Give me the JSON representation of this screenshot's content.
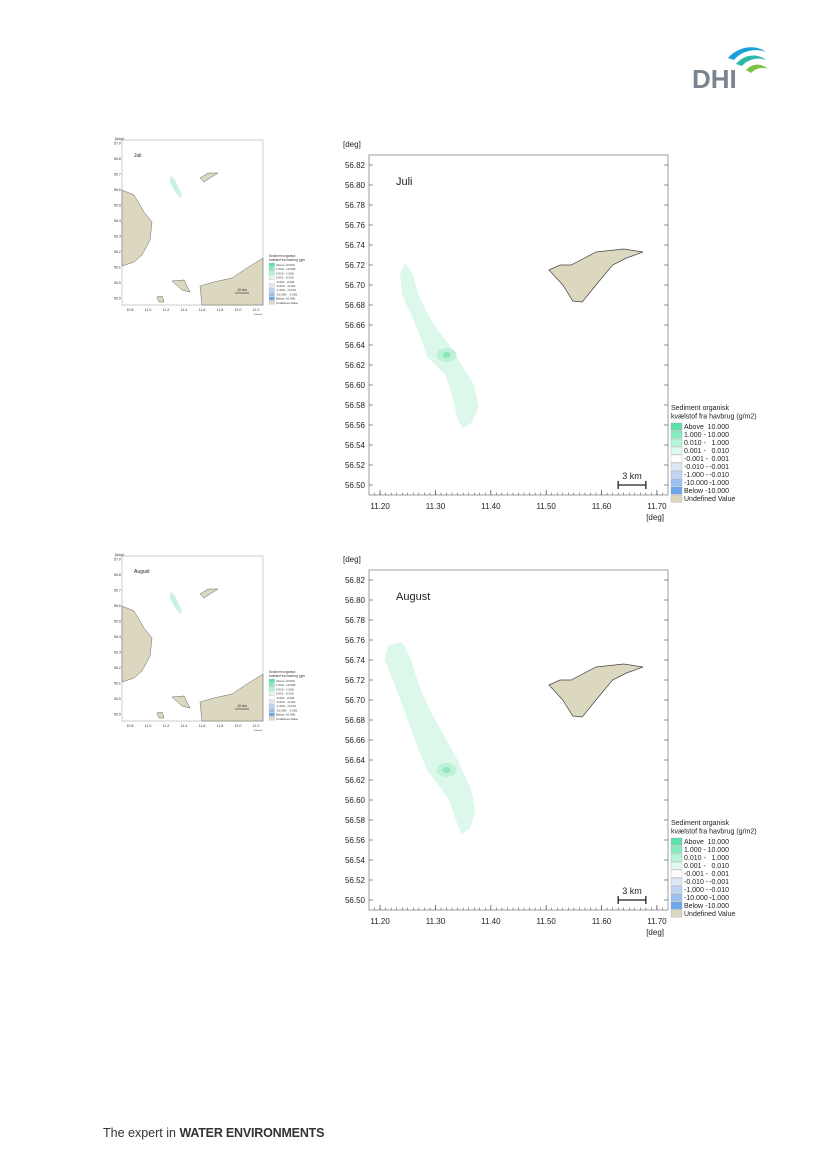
{
  "logo": {
    "text": "DHI"
  },
  "footer": {
    "prefix": "The expert in ",
    "emphasis": "WATER ENVIRONMENTS"
  },
  "panels": [
    {
      "month": "Juli",
      "thumb_month": "Juli",
      "chart_data": {
        "type": "map",
        "title": "Juli",
        "xunit": "[deg]",
        "yunit": "[deg]",
        "xticks": [
          "11.20",
          "11.30",
          "11.40",
          "11.50",
          "11.60",
          "11.70"
        ],
        "yticks": [
          "56.82",
          "56.80",
          "56.78",
          "56.76",
          "56.74",
          "56.72",
          "56.70",
          "56.68",
          "56.66",
          "56.64",
          "56.62",
          "56.60",
          "56.58",
          "56.56",
          "56.54",
          "56.52",
          "56.50"
        ],
        "xlim": [
          11.18,
          11.72
        ],
        "ylim": [
          56.49,
          56.83
        ],
        "scale_bar": "3 km",
        "plume_center": [
          11.32,
          56.63
        ]
      }
    },
    {
      "month": "August",
      "thumb_month": "August",
      "chart_data": {
        "type": "map",
        "title": "August",
        "xunit": "[deg]",
        "yunit": "[deg]",
        "xticks": [
          "11.20",
          "11.30",
          "11.40",
          "11.50",
          "11.60",
          "11.70"
        ],
        "yticks": [
          "56.82",
          "56.80",
          "56.78",
          "56.76",
          "56.74",
          "56.72",
          "56.70",
          "56.68",
          "56.66",
          "56.64",
          "56.62",
          "56.60",
          "56.58",
          "56.56",
          "56.54",
          "56.52",
          "56.50"
        ],
        "xlim": [
          11.18,
          11.72
        ],
        "ylim": [
          56.49,
          56.83
        ],
        "scale_bar": "3 km",
        "plume_center": [
          11.32,
          56.63
        ]
      }
    }
  ],
  "legend": {
    "title_line1": "Sediment organisk",
    "title_line2": "kvælstof fra havbrug (g/m2)",
    "entries": [
      {
        "label": "Above",
        "value": "10.000",
        "color": "#5fe0a8"
      },
      {
        "label": "1.000 -",
        "value": "10.000",
        "color": "#86ecbf"
      },
      {
        "label": "0.010 -",
        "value": "1.000",
        "color": "#b3f5d9"
      },
      {
        "label": "0.001 -",
        "value": "0.010",
        "color": "#ddfaec"
      },
      {
        "label": "-0.001 -",
        "value": "0.001",
        "color": "#ffffff"
      },
      {
        "label": "-0.010 -",
        "value": "-0.001",
        "color": "#dde8f7"
      },
      {
        "label": "-1.000 -",
        "value": "-0.010",
        "color": "#bfd5f3"
      },
      {
        "label": "-10.000 -",
        "value": "-1.000",
        "color": "#9cc0ef"
      },
      {
        "label": "Below",
        "value": "-10.000",
        "color": "#6fa6ec"
      },
      {
        "label": "Undefined Value",
        "value": "",
        "color": "#dcd8c0"
      }
    ]
  },
  "thumb": {
    "yunit": "[deg]",
    "xunit": "[deg]",
    "xticks": [
      "10.8",
      "11.0",
      "11.2",
      "11.4",
      "11.6",
      "11.8",
      "12.0",
      "12.2"
    ],
    "yticks": [
      "57.0",
      "56.8",
      "56.7",
      "56.6",
      "56.5",
      "56.4",
      "56.3",
      "56.2",
      "56.1",
      "56.0",
      "55.9"
    ],
    "scale_bar": "10 km"
  },
  "colors": {
    "land": "#dcd8c0",
    "land_stroke": "#444444",
    "plume": "#dcf8ea",
    "plume_mid": "#bdf2d8",
    "plume_core": "#8ee6bc",
    "frame": "#888888"
  }
}
